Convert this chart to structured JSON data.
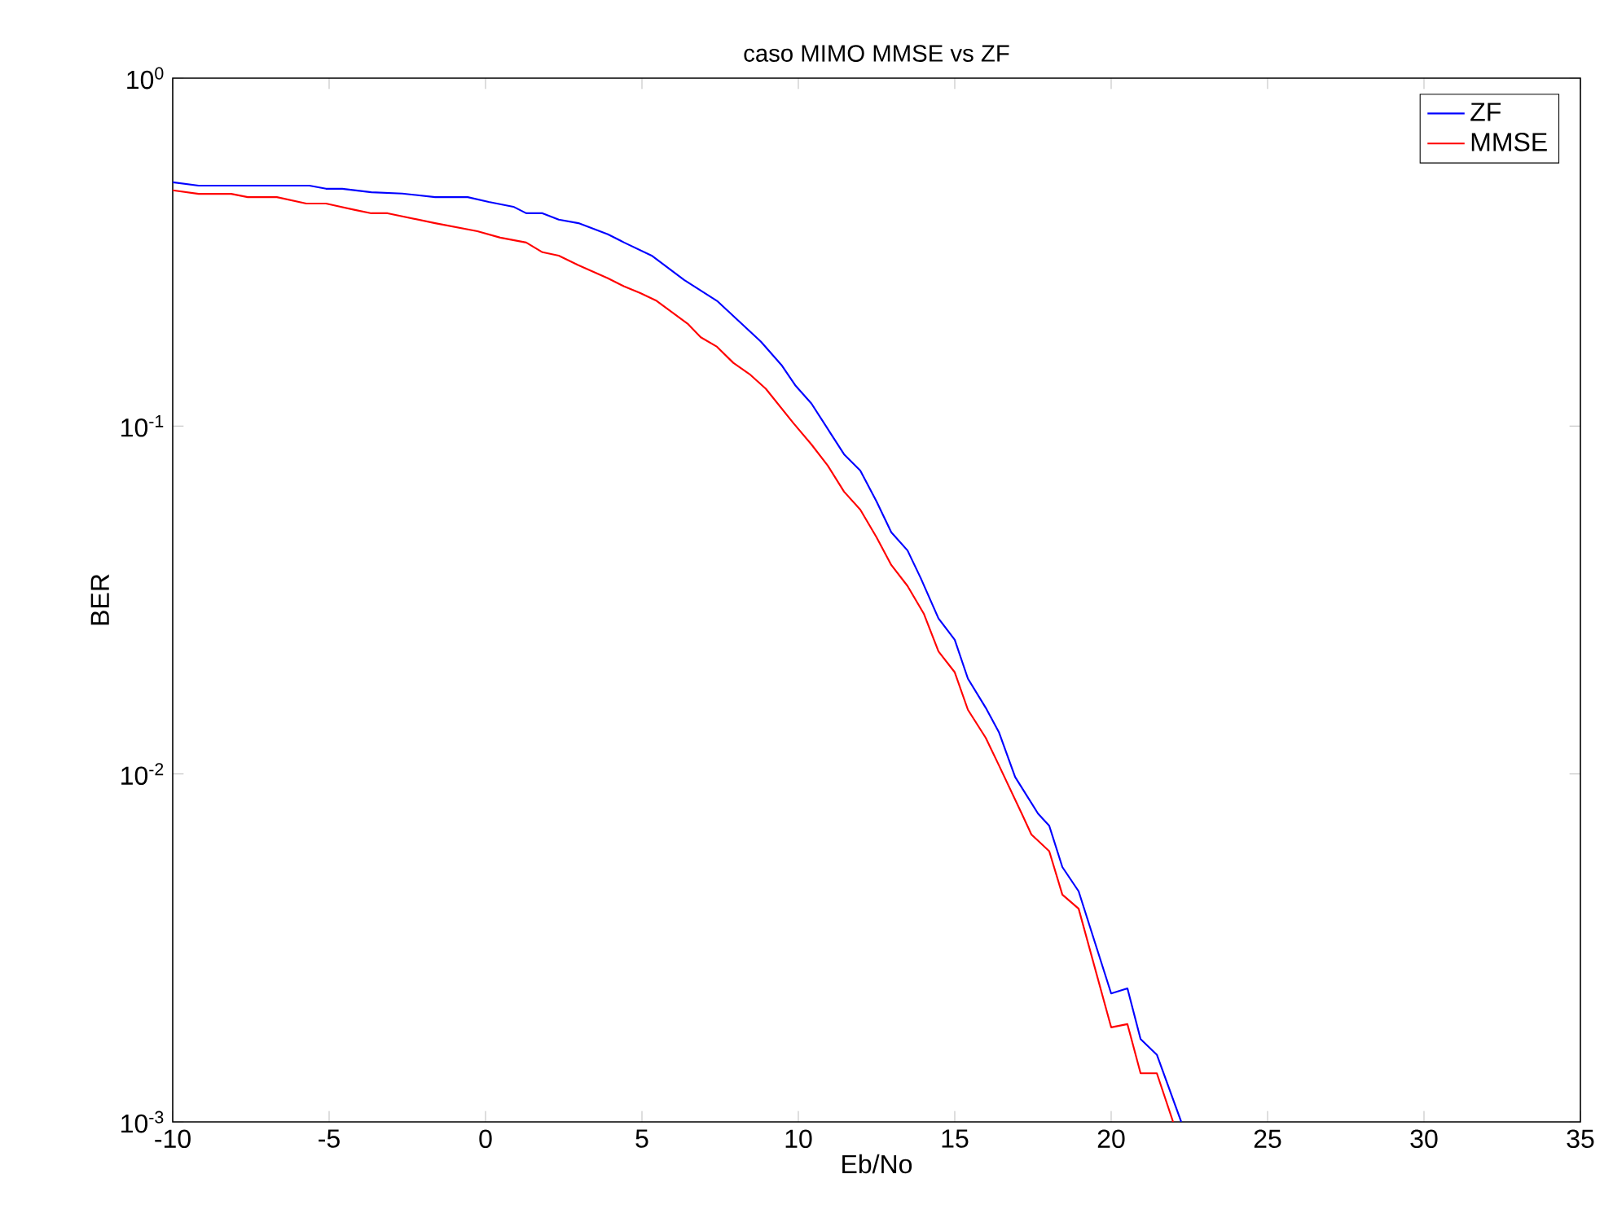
{
  "chart_data": {
    "type": "line",
    "title": "caso MIMO MMSE vs ZF",
    "xlabel": "Eb/No",
    "ylabel": "BER",
    "log": "y",
    "legend": "top right",
    "line_style": "solid",
    "xlim": [
      -10,
      35
    ],
    "ylim": [
      0.001,
      1
    ],
    "xticks": [
      -10,
      -5,
      0,
      5,
      10,
      15,
      20,
      25,
      30,
      35
    ],
    "yticks": [
      {
        "value": 0.001,
        "label": "10$^{-3}$"
      },
      {
        "value": 0.01,
        "label": "10$^{-2}$"
      },
      {
        "value": 0.1,
        "label": "10$^{-1}$"
      },
      {
        "value": 1,
        "label": "10$^{0}$"
      }
    ],
    "series": [
      {
        "name": "ZF",
        "color": "#0000ff",
        "x": [
          -10,
          -9.17,
          -5.63,
          -5.1,
          -4.58,
          -3.65,
          -2.66,
          -1.61,
          -0.57,
          0.1,
          0.89,
          1.3,
          1.82,
          2.34,
          2.97,
          3.91,
          4.43,
          5.31,
          6.35,
          7.4,
          8.8,
          9.48,
          9.9,
          10.42,
          11.46,
          11.98,
          12.5,
          12.97,
          13.49,
          13.91,
          14.48,
          15.0,
          15.42,
          15.99,
          16.41,
          16.93,
          17.66,
          18.02,
          18.44,
          18.96,
          20.0,
          20.52,
          20.94,
          21.46,
          22.24
        ],
        "values": [
          0.502,
          0.491,
          0.491,
          0.481,
          0.481,
          0.47,
          0.466,
          0.455,
          0.455,
          0.441,
          0.427,
          0.409,
          0.409,
          0.392,
          0.383,
          0.356,
          0.337,
          0.309,
          0.263,
          0.229,
          0.175,
          0.149,
          0.131,
          0.116,
          0.083,
          0.0745,
          0.0607,
          0.0495,
          0.0439,
          0.0366,
          0.028,
          0.0243,
          0.0188,
          0.0155,
          0.0132,
          0.0098,
          0.0077,
          0.0071,
          0.0054,
          0.0046,
          0.00234,
          0.00242,
          0.00173,
          0.00156,
          0.001
        ]
      },
      {
        "name": "MMSE",
        "color": "#ff0000",
        "x": [
          -10,
          -9.17,
          -8.13,
          -7.6,
          -6.67,
          -5.73,
          -5.1,
          -4.17,
          -3.65,
          -3.13,
          -1.61,
          -0.26,
          0.47,
          1.3,
          1.82,
          2.34,
          2.97,
          3.91,
          4.43,
          4.95,
          5.47,
          6.46,
          6.88,
          7.4,
          7.92,
          8.44,
          8.96,
          9.84,
          10.42,
          10.94,
          11.46,
          11.98,
          12.5,
          12.97,
          13.49,
          14.01,
          14.48,
          15.0,
          15.42,
          15.99,
          16.41,
          17.14,
          17.45,
          18.02,
          18.44,
          18.96,
          20.0,
          20.52,
          20.94,
          21.46,
          21.98
        ],
        "values": [
          0.476,
          0.465,
          0.465,
          0.455,
          0.455,
          0.436,
          0.436,
          0.418,
          0.409,
          0.409,
          0.383,
          0.363,
          0.348,
          0.337,
          0.316,
          0.309,
          0.29,
          0.266,
          0.252,
          0.241,
          0.229,
          0.197,
          0.18,
          0.169,
          0.152,
          0.141,
          0.128,
          0.102,
          0.0885,
          0.077,
          0.0648,
          0.0575,
          0.0479,
          0.0399,
          0.0347,
          0.0289,
          0.0225,
          0.0196,
          0.0153,
          0.0127,
          0.0106,
          0.0077,
          0.0067,
          0.006,
          0.0045,
          0.0041,
          0.00187,
          0.00191,
          0.00138,
          0.00138,
          0.001
        ]
      }
    ]
  }
}
